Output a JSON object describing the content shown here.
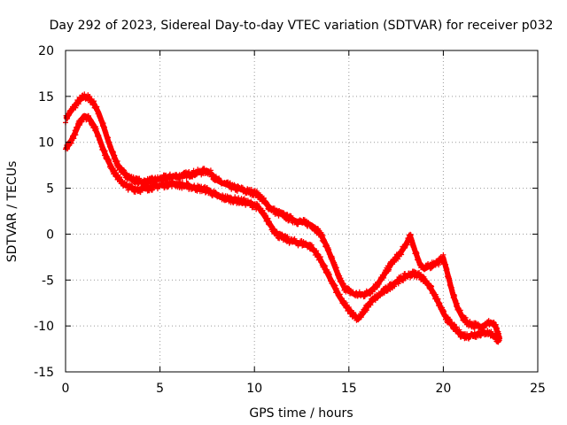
{
  "chart_data": {
    "type": "scatter",
    "title": "Day 292 of 2023, Sidereal Day-to-day VTEC variation (SDTVAR) for receiver p032",
    "xlabel": "GPS time / hours",
    "ylabel": "SDTVAR / TECUs",
    "xlim": [
      0,
      25
    ],
    "ylim": [
      -15,
      20
    ],
    "xticks": [
      0,
      5,
      10,
      15,
      20,
      25
    ],
    "yticks": [
      -15,
      -10,
      -5,
      0,
      5,
      10,
      15,
      20
    ],
    "grid": true,
    "marker": "+",
    "series": [
      {
        "name": "upper trace",
        "color": "#ff0000",
        "x": [
          0,
          0.25,
          0.5,
          0.75,
          1.0,
          1.25,
          1.5,
          1.75,
          2.0,
          2.25,
          2.5,
          2.75,
          3.0,
          3.25,
          3.5,
          3.75,
          4.0,
          4.25,
          4.5,
          4.75,
          5.0,
          5.25,
          5.5,
          5.75,
          6.0,
          6.25,
          6.5,
          6.75,
          7.0,
          7.25,
          7.5,
          7.75,
          8.0,
          8.25,
          8.5,
          8.75,
          9.0,
          9.25,
          9.5,
          9.75,
          10.0,
          10.25,
          10.5,
          10.75,
          11.0,
          11.25,
          11.5,
          11.75,
          12.0,
          12.25,
          12.5,
          12.75,
          13.0,
          13.25,
          13.5,
          13.75,
          14.0,
          14.25,
          14.5,
          14.75,
          15.0,
          15.25,
          15.5,
          15.75,
          16.0,
          16.25,
          16.5,
          16.75,
          17.0,
          17.25,
          17.5,
          17.75,
          18.0,
          18.25,
          18.5,
          18.75,
          19.0,
          19.25,
          19.5,
          19.75,
          20.0,
          20.25,
          20.5,
          20.75,
          21.0,
          21.25,
          21.5,
          21.75,
          22.0,
          22.25,
          22.5,
          22.75,
          23.0
        ],
        "y": [
          12.5,
          13.3,
          14.0,
          14.6,
          15.0,
          14.8,
          14.2,
          13.2,
          11.8,
          10.2,
          8.8,
          7.6,
          6.8,
          6.4,
          6.0,
          5.8,
          5.7,
          5.7,
          5.8,
          5.9,
          6.0,
          6.1,
          6.2,
          6.3,
          6.3,
          6.4,
          6.5,
          6.6,
          6.7,
          6.8,
          6.9,
          6.5,
          5.9,
          5.6,
          5.4,
          5.2,
          5.0,
          4.9,
          4.7,
          4.6,
          4.5,
          4.2,
          3.6,
          3.0,
          2.6,
          2.3,
          2.1,
          1.8,
          1.6,
          1.4,
          1.3,
          1.2,
          1.0,
          0.6,
          0.0,
          -1.0,
          -2.2,
          -3.5,
          -4.8,
          -5.8,
          -6.2,
          -6.5,
          -6.6,
          -6.6,
          -6.4,
          -6.0,
          -5.5,
          -4.8,
          -4.0,
          -3.2,
          -2.6,
          -2.0,
          -1.2,
          -0.2,
          -1.8,
          -3.2,
          -3.8,
          -3.5,
          -3.2,
          -3.0,
          -2.6,
          -4.5,
          -6.5,
          -8.0,
          -9.0,
          -9.6,
          -9.8,
          -10.0,
          -10.1,
          -9.8,
          -9.6,
          -10.0,
          -11.5
        ]
      },
      {
        "name": "lower trace",
        "color": "#ff0000",
        "x": [
          0,
          0.25,
          0.5,
          0.75,
          1.0,
          1.25,
          1.5,
          1.75,
          2.0,
          2.25,
          2.5,
          2.75,
          3.0,
          3.25,
          3.5,
          3.75,
          4.0,
          4.25,
          4.5,
          4.75,
          5.0,
          5.25,
          5.5,
          5.75,
          6.0,
          6.25,
          6.5,
          6.75,
          7.0,
          7.25,
          7.5,
          7.75,
          8.0,
          8.25,
          8.5,
          8.75,
          9.0,
          9.25,
          9.5,
          9.75,
          10.0,
          10.25,
          10.5,
          10.75,
          11.0,
          11.25,
          11.5,
          11.75,
          12.0,
          12.25,
          12.5,
          12.75,
          13.0,
          13.25,
          13.5,
          13.75,
          14.0,
          14.25,
          14.5,
          14.75,
          15.0,
          15.25,
          15.5,
          15.75,
          16.0,
          16.25,
          16.5,
          16.75,
          17.0,
          17.25,
          17.5,
          17.75,
          18.0,
          18.25,
          18.5,
          18.75,
          19.0,
          19.25,
          19.5,
          19.75,
          20.0,
          20.25,
          20.5,
          20.75,
          21.0,
          21.25,
          21.5,
          21.75,
          22.0,
          22.25,
          22.5,
          22.75,
          23.0
        ],
        "y": [
          9.2,
          10.0,
          11.0,
          12.2,
          12.9,
          12.6,
          11.8,
          10.6,
          9.2,
          8.0,
          7.0,
          6.2,
          5.6,
          5.2,
          5.0,
          4.9,
          4.9,
          5.0,
          5.1,
          5.2,
          5.3,
          5.4,
          5.5,
          5.5,
          5.4,
          5.3,
          5.2,
          5.1,
          5.0,
          4.9,
          4.8,
          4.5,
          4.2,
          4.0,
          3.9,
          3.8,
          3.7,
          3.6,
          3.5,
          3.3,
          3.2,
          2.8,
          2.1,
          1.3,
          0.5,
          -0.1,
          -0.4,
          -0.6,
          -0.8,
          -0.9,
          -1.0,
          -1.1,
          -1.4,
          -2.0,
          -2.8,
          -3.8,
          -4.8,
          -5.8,
          -6.8,
          -7.6,
          -8.2,
          -8.8,
          -9.2,
          -8.6,
          -7.8,
          -7.2,
          -6.8,
          -6.4,
          -6.0,
          -5.6,
          -5.2,
          -4.9,
          -4.6,
          -4.4,
          -4.3,
          -4.5,
          -5.0,
          -5.6,
          -6.5,
          -7.5,
          -8.6,
          -9.4,
          -10.0,
          -10.6,
          -11.0,
          -11.1,
          -11.0,
          -10.9,
          -10.8,
          -10.7,
          -10.8,
          -11.2,
          -11.8
        ]
      }
    ]
  }
}
